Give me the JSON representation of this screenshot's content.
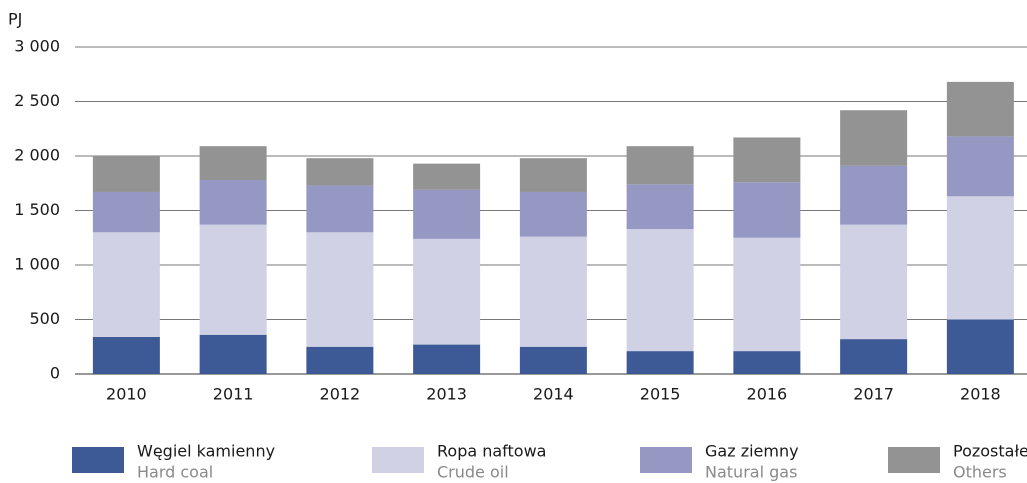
{
  "chart_data": {
    "type": "stacked_bar",
    "y_axis_label": "PJ",
    "categories": [
      "2010",
      "2011",
      "2012",
      "2013",
      "2014",
      "2015",
      "2016",
      "2017",
      "2018"
    ],
    "series": [
      {
        "name": "Węgiel kamienny",
        "name_en": "Hard coal",
        "color": "#3d5a96",
        "values": [
          340,
          360,
          250,
          270,
          250,
          210,
          210,
          320,
          500
        ]
      },
      {
        "name": "Ropa naftowa",
        "name_en": "Crude oil",
        "color": "#d0d1e4",
        "values": [
          960,
          1010,
          1050,
          970,
          1010,
          1120,
          1040,
          1050,
          1130
        ]
      },
      {
        "name": "Gaz ziemny",
        "name_en": "Natural gas",
        "color": "#9498c3",
        "values": [
          370,
          410,
          430,
          450,
          410,
          410,
          510,
          540,
          550
        ]
      },
      {
        "name": "Pozostałe",
        "name_en": "Others",
        "color": "#939393",
        "values": [
          330,
          310,
          250,
          240,
          310,
          350,
          410,
          510,
          500
        ]
      }
    ],
    "ylim": [
      0,
      3000
    ],
    "yticks": [
      0,
      500,
      {
        "value": 1000,
        "label": "1 000"
      },
      {
        "value": 1500,
        "label": "1 500"
      },
      {
        "value": 2000,
        "label": "2 000"
      },
      {
        "value": 2500,
        "label": "2 500"
      },
      {
        "value": 3000,
        "label": "3 000"
      }
    ],
    "grid": true
  }
}
